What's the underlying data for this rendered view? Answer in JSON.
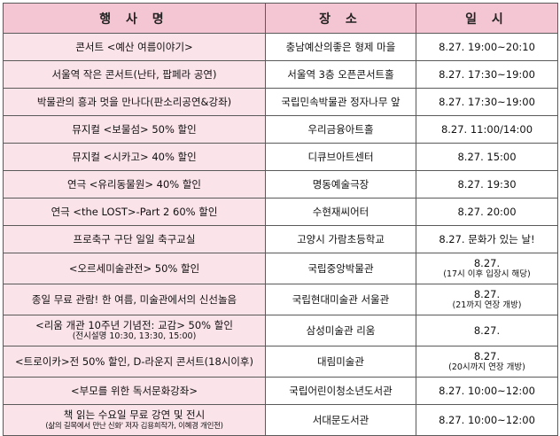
{
  "header": {
    "event": "행 사 명",
    "place": "장 소",
    "date": "일 시"
  },
  "rows": [
    {
      "event": "콘서트 <예산 여름이야기>",
      "place": "충남예산의좋은 형제 마을",
      "date": "8.27. 19:00~20:10"
    },
    {
      "event": "서울역 작은 콘서트(난타, 팝페라 공연)",
      "place": "서울역 3층 오픈콘서트홀",
      "date": "8.27. 17:30~19:00"
    },
    {
      "event": "박물관의 흥과 멋을 만나다(판소리공연&강좌)",
      "place": "국립민속박물관 정자나무 앞",
      "date": "8.27. 17:30~19:00"
    },
    {
      "event": "뮤지컬 <보물섬> 50% 할인",
      "place": "우리금융아트홀",
      "date": "8.27. 11:00/14:00"
    },
    {
      "event": "뮤지컬 <시카고> 40% 할인",
      "place": "디큐브아트센터",
      "date": "8.27. 15:00"
    },
    {
      "event": "연극 <유리동물원> 40% 할인",
      "place": "명동예술극장",
      "date": "8.27. 19:30"
    },
    {
      "event": "연극 <the LOST>-Part 2 60% 할인",
      "place": "수현재씨어터",
      "date": "8.27. 20:00"
    },
    {
      "event": "프로축구 구단 일일 축구교실",
      "place": "고양시 가람초등학교",
      "date": "8.27. 문화가 있는 날!"
    },
    {
      "event": "<오르세미술관전> 50% 할인",
      "place": "국립중앙박물관",
      "date": "8.27.",
      "date_sub": "(17시 이후 입장시 해당)"
    },
    {
      "event": "종일 무료 관람! 한 여름, 미술관에서의 신선놀음",
      "place": "국립현대미술관 서울관",
      "date": "8.27.",
      "date_sub": "(21까지 연장 개방)"
    },
    {
      "event": "<리움 개관 10주년 기념전: 교감> 50% 할인",
      "event_sub": "(전시설명 10:30, 13:30, 15:00)",
      "place": "삼성미술관 리움",
      "date": "8.27."
    },
    {
      "event": "<트로이카>전 50% 할인, D-라운지 콘서트(18시이후)",
      "place": "대림미술관",
      "date": "8.27.",
      "date_sub": "(20시까지 연장 개방)"
    },
    {
      "event": "<부모를 위한 독서문화강좌>",
      "place": "국립어린이청소년도서관",
      "date": "8.27. 10:00~12:00"
    },
    {
      "event": "책 읽는 수요일 무료 강연 및 전시",
      "event_sub": "(삶의 길목에서 만난 신화' 저자 김용희작가, 이혜경 개인전)",
      "place": "서대문도서관",
      "date": "8.27. 10:00~12:00"
    }
  ]
}
